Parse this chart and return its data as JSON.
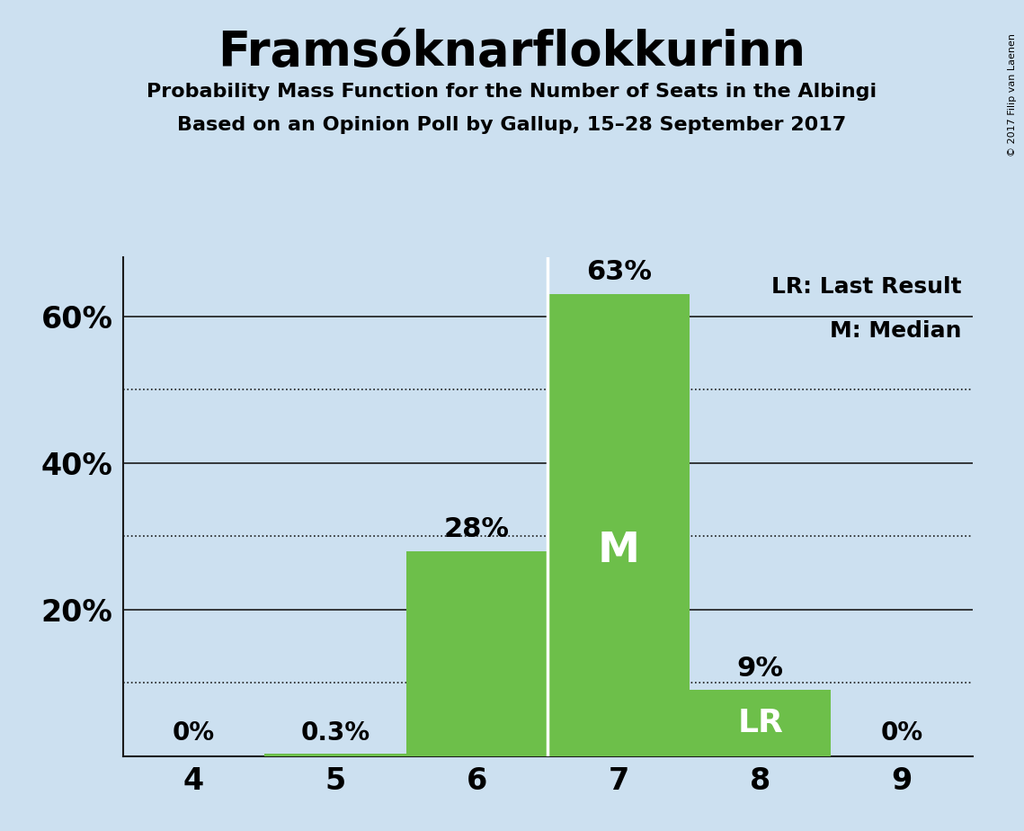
{
  "title": "Framsóknarflokkurinn",
  "subtitle1": "Probability Mass Function for the Number of Seats in the Albingi",
  "subtitle2": "Based on an Opinion Poll by Gallup, 15–28 September 2017",
  "copyright": "© 2017 Filip van Laenen",
  "seats": [
    4,
    5,
    6,
    7,
    8,
    9
  ],
  "probabilities": [
    0.0,
    0.003,
    0.28,
    0.63,
    0.09,
    0.0
  ],
  "labels": [
    "0%",
    "0.3%",
    "28%",
    "63%",
    "9%",
    "0%"
  ],
  "bar_color": "#6dbf4a",
  "background_color": "#cce0f0",
  "median_seat": 7,
  "last_result_seat": 8,
  "legend_lr": "LR: Last Result",
  "legend_m": "M: Median",
  "solid_gridlines": [
    20,
    40,
    60
  ],
  "dotted_gridlines": [
    10,
    30,
    50
  ],
  "ytick_labels": [
    "20%",
    "40%",
    "60%"
  ],
  "ytick_positions": [
    20,
    40,
    60
  ],
  "ylim": [
    0,
    68
  ],
  "xlim": [
    3.5,
    9.5
  ]
}
